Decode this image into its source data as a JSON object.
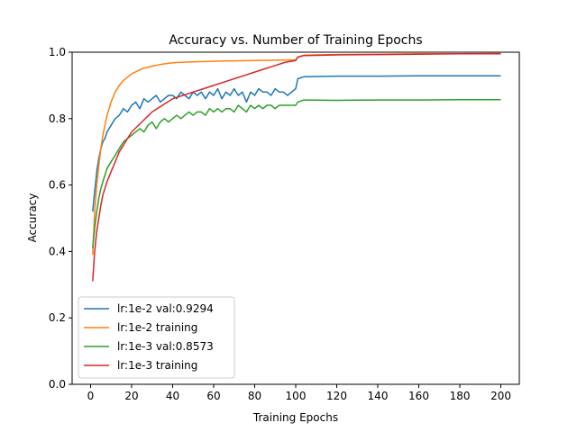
{
  "chart_data": {
    "type": "line",
    "title": "Accuracy vs. Number of Training Epochs",
    "xlabel": "Training Epochs",
    "ylabel": "Accuracy",
    "xlim": [
      -9,
      209
    ],
    "ylim": [
      0.0,
      1.0
    ],
    "xticks": [
      0,
      20,
      40,
      60,
      80,
      100,
      120,
      140,
      160,
      180,
      200
    ],
    "yticks": [
      0.0,
      0.2,
      0.4,
      0.6,
      0.8,
      1.0
    ],
    "xtick_labels": [
      "0",
      "20",
      "40",
      "60",
      "80",
      "100",
      "120",
      "140",
      "160",
      "180",
      "200"
    ],
    "ytick_labels": [
      "0.0",
      "0.2",
      "0.4",
      "0.6",
      "0.8",
      "1.0"
    ],
    "grid": false,
    "legend_position": "lower-left",
    "series": [
      {
        "name": "lr:1e-2 val:0.9294",
        "color": "#1f77b4",
        "points": [
          [
            1,
            0.52
          ],
          [
            2,
            0.58
          ],
          [
            3,
            0.64
          ],
          [
            4,
            0.68
          ],
          [
            5,
            0.71
          ],
          [
            6,
            0.73
          ],
          [
            7,
            0.74
          ],
          [
            8,
            0.76
          ],
          [
            10,
            0.78
          ],
          [
            12,
            0.8
          ],
          [
            14,
            0.81
          ],
          [
            16,
            0.83
          ],
          [
            18,
            0.82
          ],
          [
            20,
            0.84
          ],
          [
            22,
            0.85
          ],
          [
            24,
            0.83
          ],
          [
            26,
            0.86
          ],
          [
            28,
            0.85
          ],
          [
            30,
            0.86
          ],
          [
            32,
            0.87
          ],
          [
            34,
            0.85
          ],
          [
            36,
            0.86
          ],
          [
            38,
            0.87
          ],
          [
            40,
            0.87
          ],
          [
            42,
            0.86
          ],
          [
            44,
            0.88
          ],
          [
            46,
            0.87
          ],
          [
            48,
            0.86
          ],
          [
            50,
            0.88
          ],
          [
            52,
            0.87
          ],
          [
            54,
            0.88
          ],
          [
            56,
            0.86
          ],
          [
            58,
            0.88
          ],
          [
            60,
            0.87
          ],
          [
            62,
            0.89
          ],
          [
            64,
            0.86
          ],
          [
            66,
            0.88
          ],
          [
            68,
            0.87
          ],
          [
            70,
            0.89
          ],
          [
            72,
            0.87
          ],
          [
            74,
            0.88
          ],
          [
            76,
            0.85
          ],
          [
            78,
            0.88
          ],
          [
            80,
            0.87
          ],
          [
            82,
            0.89
          ],
          [
            84,
            0.88
          ],
          [
            86,
            0.88
          ],
          [
            88,
            0.87
          ],
          [
            90,
            0.89
          ],
          [
            92,
            0.88
          ],
          [
            94,
            0.88
          ],
          [
            96,
            0.87
          ],
          [
            98,
            0.88
          ],
          [
            100,
            0.89
          ],
          [
            101,
            0.92
          ],
          [
            104,
            0.926
          ],
          [
            120,
            0.928
          ],
          [
            140,
            0.928
          ],
          [
            160,
            0.929
          ],
          [
            180,
            0.929
          ],
          [
            200,
            0.929
          ]
        ]
      },
      {
        "name": "lr:1e-2 training",
        "color": "#ff7f0e",
        "points": [
          [
            1,
            0.39
          ],
          [
            2,
            0.52
          ],
          [
            3,
            0.6
          ],
          [
            4,
            0.66
          ],
          [
            5,
            0.71
          ],
          [
            6,
            0.75
          ],
          [
            7,
            0.78
          ],
          [
            8,
            0.81
          ],
          [
            10,
            0.85
          ],
          [
            12,
            0.88
          ],
          [
            14,
            0.9
          ],
          [
            16,
            0.915
          ],
          [
            18,
            0.925
          ],
          [
            20,
            0.935
          ],
          [
            25,
            0.95
          ],
          [
            30,
            0.958
          ],
          [
            35,
            0.964
          ],
          [
            40,
            0.968
          ],
          [
            45,
            0.97
          ],
          [
            50,
            0.971
          ],
          [
            60,
            0.973
          ],
          [
            70,
            0.974
          ],
          [
            80,
            0.975
          ],
          [
            90,
            0.976
          ],
          [
            100,
            0.977
          ],
          [
            101,
            0.985
          ],
          [
            104,
            0.991
          ],
          [
            120,
            0.993
          ],
          [
            140,
            0.994
          ],
          [
            160,
            0.995
          ],
          [
            180,
            0.995
          ],
          [
            200,
            0.996
          ]
        ]
      },
      {
        "name": "lr:1e-3 val:0.8573",
        "color": "#2ca02c",
        "points": [
          [
            1,
            0.41
          ],
          [
            2,
            0.47
          ],
          [
            3,
            0.52
          ],
          [
            4,
            0.56
          ],
          [
            5,
            0.59
          ],
          [
            6,
            0.61
          ],
          [
            7,
            0.63
          ],
          [
            8,
            0.65
          ],
          [
            10,
            0.67
          ],
          [
            12,
            0.69
          ],
          [
            14,
            0.71
          ],
          [
            16,
            0.73
          ],
          [
            18,
            0.74
          ],
          [
            20,
            0.75
          ],
          [
            22,
            0.76
          ],
          [
            24,
            0.77
          ],
          [
            26,
            0.76
          ],
          [
            28,
            0.78
          ],
          [
            30,
            0.79
          ],
          [
            32,
            0.77
          ],
          [
            34,
            0.79
          ],
          [
            36,
            0.8
          ],
          [
            38,
            0.79
          ],
          [
            40,
            0.8
          ],
          [
            42,
            0.81
          ],
          [
            44,
            0.8
          ],
          [
            46,
            0.81
          ],
          [
            48,
            0.82
          ],
          [
            50,
            0.81
          ],
          [
            52,
            0.82
          ],
          [
            54,
            0.82
          ],
          [
            56,
            0.81
          ],
          [
            58,
            0.83
          ],
          [
            60,
            0.82
          ],
          [
            62,
            0.83
          ],
          [
            64,
            0.82
          ],
          [
            66,
            0.83
          ],
          [
            68,
            0.83
          ],
          [
            70,
            0.82
          ],
          [
            72,
            0.84
          ],
          [
            74,
            0.83
          ],
          [
            76,
            0.82
          ],
          [
            78,
            0.84
          ],
          [
            80,
            0.83
          ],
          [
            82,
            0.84
          ],
          [
            84,
            0.83
          ],
          [
            86,
            0.84
          ],
          [
            88,
            0.84
          ],
          [
            90,
            0.83
          ],
          [
            92,
            0.84
          ],
          [
            94,
            0.84
          ],
          [
            96,
            0.84
          ],
          [
            98,
            0.84
          ],
          [
            100,
            0.84
          ],
          [
            101,
            0.85
          ],
          [
            104,
            0.856
          ],
          [
            120,
            0.855
          ],
          [
            140,
            0.856
          ],
          [
            160,
            0.856
          ],
          [
            180,
            0.857
          ],
          [
            200,
            0.857
          ]
        ]
      },
      {
        "name": "lr:1e-3 training",
        "color": "#d62728",
        "points": [
          [
            1,
            0.31
          ],
          [
            2,
            0.4
          ],
          [
            3,
            0.46
          ],
          [
            4,
            0.5
          ],
          [
            5,
            0.54
          ],
          [
            6,
            0.57
          ],
          [
            7,
            0.59
          ],
          [
            8,
            0.61
          ],
          [
            10,
            0.64
          ],
          [
            12,
            0.67
          ],
          [
            14,
            0.7
          ],
          [
            16,
            0.72
          ],
          [
            18,
            0.74
          ],
          [
            20,
            0.76
          ],
          [
            25,
            0.79
          ],
          [
            30,
            0.82
          ],
          [
            35,
            0.84
          ],
          [
            40,
            0.86
          ],
          [
            45,
            0.87
          ],
          [
            50,
            0.88
          ],
          [
            55,
            0.89
          ],
          [
            60,
            0.9
          ],
          [
            65,
            0.91
          ],
          [
            70,
            0.92
          ],
          [
            75,
            0.93
          ],
          [
            80,
            0.94
          ],
          [
            85,
            0.95
          ],
          [
            90,
            0.96
          ],
          [
            95,
            0.97
          ],
          [
            100,
            0.975
          ],
          [
            101,
            0.985
          ],
          [
            104,
            0.99
          ],
          [
            120,
            0.992
          ],
          [
            140,
            0.993
          ],
          [
            160,
            0.994
          ],
          [
            180,
            0.995
          ],
          [
            200,
            0.995
          ]
        ]
      }
    ]
  }
}
